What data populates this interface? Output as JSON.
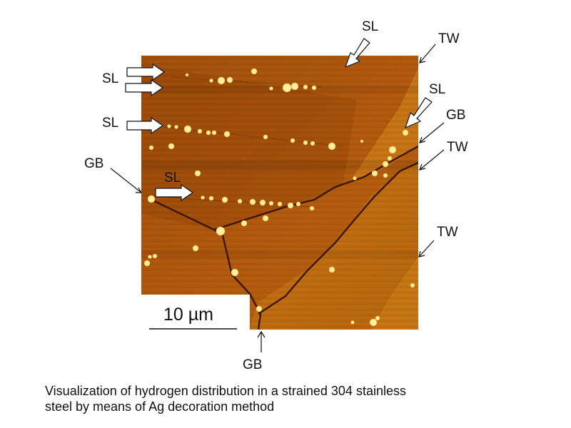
{
  "labels": {
    "sl": "SL",
    "tw": "TW",
    "gb": "GB"
  },
  "scale_bar": {
    "text": "10 µm"
  },
  "caption": {
    "line1": "Visualization of hydrogen distribution in a strained 304 stainless",
    "line2": "steel by means of Ag decoration method"
  },
  "colors": {
    "micrograph_base": "#b25a0e",
    "micrograph_dark": "#7a3604",
    "grain_right": "#c4700f",
    "twin_band": "#d98a1c",
    "boundary_line": "#3a1600",
    "particles": "#fff09a",
    "arrow_fill": "#ffffff",
    "arrow_stroke": "#111111"
  }
}
